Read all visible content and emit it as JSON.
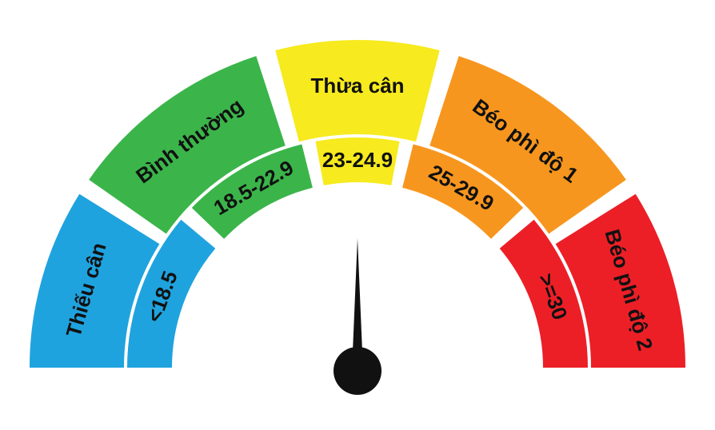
{
  "categories": [
    {
      "name": "Thiếu cân",
      "range": "<18.5",
      "color": "#1fa3de"
    },
    {
      "name": "Bình thường",
      "range": "18.5-22.9",
      "color": "#3bb54a"
    },
    {
      "name": "Thừa cân",
      "range": "23-24.9",
      "color": "#f7ea1e"
    },
    {
      "name": "Béo phì độ 1",
      "range": "25-29.9",
      "color": "#f7961e"
    },
    {
      "name": "Béo phì độ 2",
      "range": ">=30",
      "color": "#ec1f27"
    }
  ],
  "needle": {
    "color": "#111111",
    "pointing": "up"
  }
}
